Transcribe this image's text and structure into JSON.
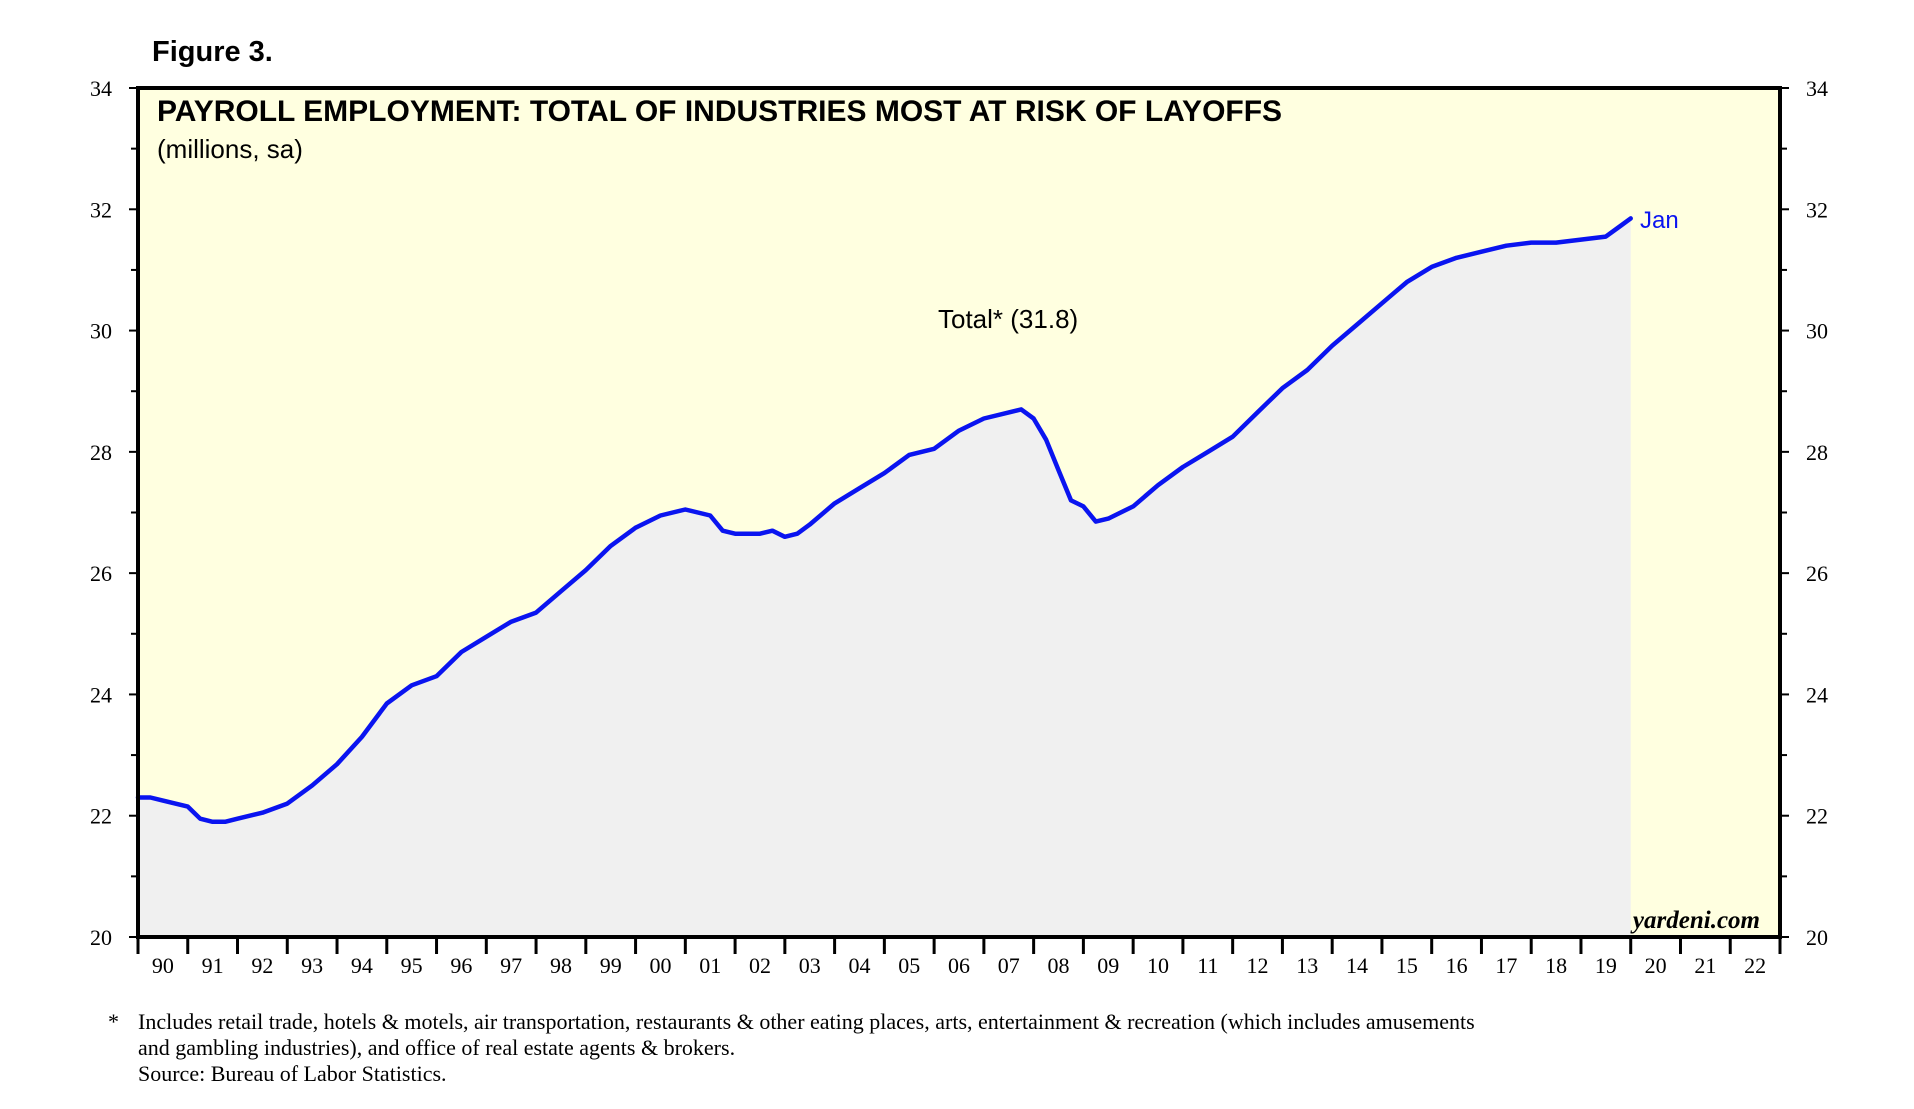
{
  "figure_label": "Figure 3.",
  "chart_data": {
    "type": "area",
    "title": "PAYROLL EMPLOYMENT: TOTAL OF INDUSTRIES MOST AT RISK OF LAYOFFS",
    "subtitle": "(millions, sa)",
    "annotation": "Total* (31.8)",
    "end_label": "Jan",
    "watermark": "yardeni.com",
    "ylim": [
      20,
      34
    ],
    "y_ticks": [
      "20",
      "22",
      "24",
      "26",
      "28",
      "30",
      "32",
      "34"
    ],
    "x_range": [
      1990,
      2023
    ],
    "x_tick_labels": [
      "90",
      "91",
      "92",
      "93",
      "94",
      "95",
      "96",
      "97",
      "98",
      "99",
      "00",
      "01",
      "02",
      "03",
      "04",
      "05",
      "06",
      "07",
      "08",
      "09",
      "10",
      "11",
      "12",
      "13",
      "14",
      "15",
      "16",
      "17",
      "18",
      "19",
      "20",
      "21",
      "22"
    ],
    "series": [
      {
        "name": "Total",
        "color": "#0a14f0",
        "fill": "#f0f0f0",
        "x": [
          1990.0,
          1990.25,
          1990.5,
          1990.75,
          1991.0,
          1991.25,
          1991.5,
          1991.75,
          1992.0,
          1992.5,
          1993.0,
          1993.5,
          1994.0,
          1994.5,
          1995.0,
          1995.5,
          1996.0,
          1996.5,
          1997.0,
          1997.5,
          1998.0,
          1998.5,
          1999.0,
          1999.5,
          2000.0,
          2000.5,
          2001.0,
          2001.5,
          2001.75,
          2002.0,
          2002.5,
          2002.75,
          2003.0,
          2003.25,
          2003.5,
          2004.0,
          2004.5,
          2005.0,
          2005.5,
          2006.0,
          2006.5,
          2007.0,
          2007.5,
          2007.75,
          2008.0,
          2008.25,
          2008.5,
          2008.75,
          2009.0,
          2009.25,
          2009.5,
          2009.75,
          2010.0,
          2010.5,
          2011.0,
          2011.5,
          2012.0,
          2012.5,
          2013.0,
          2013.5,
          2014.0,
          2014.5,
          2015.0,
          2015.5,
          2016.0,
          2016.5,
          2017.0,
          2017.5,
          2018.0,
          2018.5,
          2019.0,
          2019.5,
          2019.75,
          2020.0
        ],
        "values": [
          22.3,
          22.3,
          22.25,
          22.2,
          22.15,
          21.95,
          21.9,
          21.9,
          21.95,
          22.05,
          22.2,
          22.5,
          22.85,
          23.3,
          23.85,
          24.15,
          24.3,
          24.7,
          24.95,
          25.2,
          25.35,
          25.7,
          26.05,
          26.45,
          26.75,
          26.95,
          27.05,
          26.95,
          26.7,
          26.65,
          26.65,
          26.7,
          26.6,
          26.65,
          26.8,
          27.15,
          27.4,
          27.65,
          27.95,
          28.05,
          28.35,
          28.55,
          28.65,
          28.7,
          28.55,
          28.2,
          27.7,
          27.2,
          27.1,
          26.85,
          26.9,
          27.0,
          27.1,
          27.45,
          27.75,
          28.0,
          28.25,
          28.65,
          29.05,
          29.35,
          29.75,
          30.1,
          30.45,
          30.8,
          31.05,
          31.2,
          31.3,
          31.4,
          31.45,
          31.45,
          31.5,
          31.55,
          31.7,
          31.85
        ]
      }
    ]
  },
  "footnote": {
    "marker": "*",
    "line1": "Includes retail trade, hotels & motels, air transportation, restaurants & other eating places, arts, entertainment & recreation (which includes amusements",
    "line2": "and gambling industries), and office of real estate agents & brokers.",
    "source": "Source: Bureau of Labor Statistics."
  }
}
